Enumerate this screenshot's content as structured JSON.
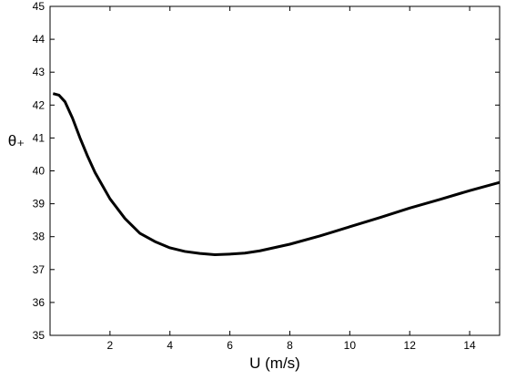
{
  "chart_data": {
    "type": "line",
    "x_label": "U (m/s)",
    "y_label": "θ₊",
    "x": [
      0.1,
      0.3,
      0.5,
      0.75,
      1,
      1.25,
      1.5,
      1.75,
      2,
      2.5,
      3,
      3.5,
      4,
      4.5,
      5,
      5.5,
      6,
      6.5,
      7,
      8,
      9,
      10,
      11,
      12,
      13,
      14,
      15
    ],
    "series": [
      {
        "name": "θ₊",
        "color": "#000000",
        "values": [
          42.35,
          42.3,
          42.1,
          41.6,
          41.0,
          40.45,
          39.95,
          39.55,
          39.15,
          38.55,
          38.1,
          37.85,
          37.66,
          37.55,
          37.49,
          37.45,
          37.47,
          37.5,
          37.57,
          37.77,
          38.02,
          38.3,
          38.58,
          38.87,
          39.13,
          39.4,
          39.65
        ]
      }
    ],
    "xlim": [
      0,
      15
    ],
    "xticks": [
      2,
      4,
      6,
      8,
      10,
      12,
      14
    ],
    "ylim": [
      35,
      45
    ],
    "yticks": [
      35,
      36,
      37,
      38,
      39,
      40,
      41,
      42,
      43,
      44,
      45
    ]
  }
}
